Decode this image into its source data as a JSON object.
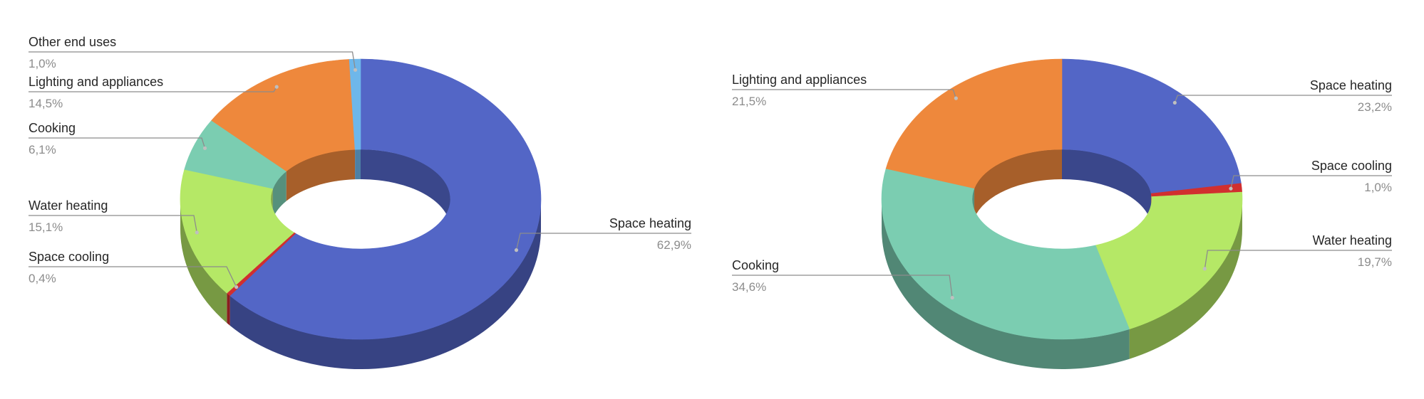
{
  "colors": {
    "space_heating": "#5366c6",
    "space_cooling": "#d12f2f",
    "water_heating": "#b5e866",
    "cooking": "#7bcdb1",
    "lighting_and_appliances": "#ee883c",
    "other_end_uses": "#6eb7ea"
  },
  "chart_data": [
    {
      "type": "pie",
      "variant": "3d-donut",
      "title": "",
      "series": [
        {
          "key": "space_heating",
          "label": "Space heating",
          "value": 62.9,
          "value_label": "62,9%"
        },
        {
          "key": "space_cooling",
          "label": "Space cooling",
          "value": 0.4,
          "value_label": "0,4%"
        },
        {
          "key": "water_heating",
          "label": "Water heating",
          "value": 15.1,
          "value_label": "15,1%"
        },
        {
          "key": "cooking",
          "label": "Cooking",
          "value": 6.1,
          "value_label": "6,1%"
        },
        {
          "key": "lighting_and_appliances",
          "label": "Lighting and appliances",
          "value": 14.5,
          "value_label": "14,5%"
        },
        {
          "key": "other_end_uses",
          "label": "Other end uses",
          "value": 1.0,
          "value_label": "1,0%"
        }
      ]
    },
    {
      "type": "pie",
      "variant": "3d-donut",
      "title": "",
      "series": [
        {
          "key": "space_heating",
          "label": "Space heating",
          "value": 23.2,
          "value_label": "23,2%"
        },
        {
          "key": "space_cooling",
          "label": "Space cooling",
          "value": 1.0,
          "value_label": "1,0%"
        },
        {
          "key": "water_heating",
          "label": "Water heating",
          "value": 19.7,
          "value_label": "19,7%"
        },
        {
          "key": "cooking",
          "label": "Cooking",
          "value": 34.6,
          "value_label": "34,6%"
        },
        {
          "key": "lighting_and_appliances",
          "label": "Lighting and appliances",
          "value": 21.5,
          "value_label": "21,5%"
        }
      ]
    }
  ]
}
